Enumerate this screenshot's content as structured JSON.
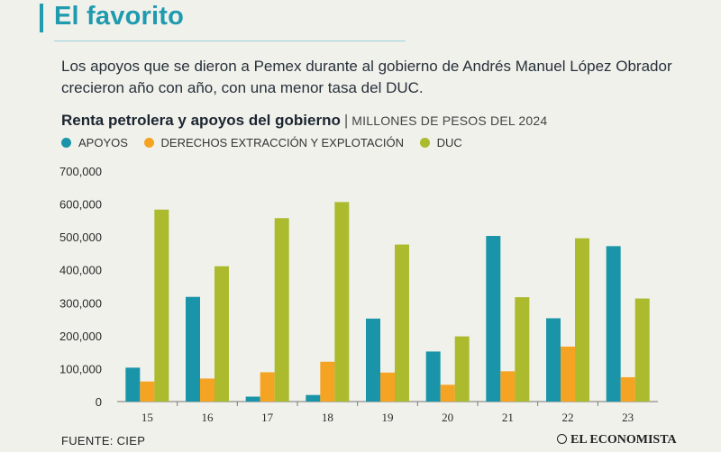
{
  "header": {
    "title": "El favorito",
    "subtitle": "Los apoyos que se dieron a Pemex durante al gobierno de Andrés Manuel López Obrador crecieron año con año, con una menor tasa del DUC."
  },
  "chart_heading": {
    "title": "Renta petrolera y apoyos del gobierno",
    "separator": "|",
    "units": "MILLONES DE PESOS DEL 2024"
  },
  "legend": [
    {
      "label": "APOYOS",
      "color": "#1a94a8"
    },
    {
      "label": "DERECHOS EXTRACCIÓN Y EXPLOTACIÓN",
      "color": "#f5a322"
    },
    {
      "label": "DUC",
      "color": "#abbb2d"
    }
  ],
  "chart_data": {
    "type": "bar",
    "categories": [
      "15",
      "16",
      "17",
      "18",
      "19",
      "20",
      "21",
      "22",
      "23"
    ],
    "series": [
      {
        "name": "APOYOS",
        "color": "#1a94a8",
        "values": [
          103000,
          318000,
          15000,
          20000,
          252000,
          152000,
          503000,
          253000,
          472000
        ]
      },
      {
        "name": "DERECHOS EXTRACCIÓN Y EXPLOTACIÓN",
        "color": "#f5a322",
        "values": [
          61000,
          70000,
          89000,
          121000,
          88000,
          51000,
          92000,
          167000,
          74000
        ]
      },
      {
        "name": "DUC",
        "color": "#abbb2d",
        "values": [
          583000,
          411000,
          557000,
          606000,
          477000,
          198000,
          317000,
          496000,
          313000
        ]
      }
    ],
    "ylim": [
      0,
      700000
    ],
    "yticks": [
      0,
      100000,
      200000,
      300000,
      400000,
      500000,
      600000,
      700000
    ],
    "ytick_labels": [
      "0",
      "100,000",
      "200,000",
      "300,000",
      "400,000",
      "500,000",
      "600,000",
      "700,000"
    ],
    "grid": false,
    "legend_position": "top-left"
  },
  "footer": {
    "source": "FUENTE: CIEP",
    "brand": "EL ECONOMISTA"
  }
}
